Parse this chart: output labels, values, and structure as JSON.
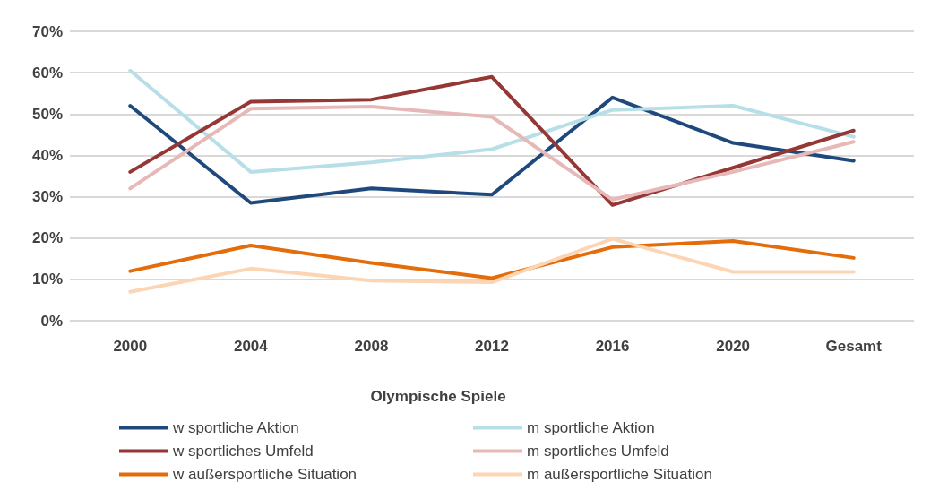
{
  "chart_data": {
    "type": "line",
    "xlabel": "Olympische Spiele",
    "categories": [
      "2000",
      "2004",
      "2008",
      "2012",
      "2016",
      "2020",
      "Gesamt"
    ],
    "ylim": [
      0,
      70
    ],
    "yticks": [
      {
        "value": 0,
        "label": "0%"
      },
      {
        "value": 10,
        "label": "10%"
      },
      {
        "value": 20,
        "label": "20%"
      },
      {
        "value": 30,
        "label": "30%"
      },
      {
        "value": 40,
        "label": "40%"
      },
      {
        "value": 50,
        "label": "50%"
      },
      {
        "value": 60,
        "label": "60%"
      },
      {
        "value": 70,
        "label": "70%"
      }
    ],
    "grid": "y",
    "legend": "bottom",
    "marker": "none",
    "line_style": "solid",
    "series": [
      {
        "name": "w sportliche Aktion",
        "color": "#1f497d",
        "values": [
          52,
          28.5,
          32,
          30.5,
          54,
          43,
          38.7
        ]
      },
      {
        "name": "m sportliche Aktion",
        "color": "#b7dfe8",
        "values": [
          60.5,
          36,
          38.3,
          41.5,
          51,
          52,
          44.5
        ]
      },
      {
        "name": "w sportliches Umfeld",
        "color": "#953735",
        "values": [
          36,
          53,
          53.5,
          59,
          28,
          37,
          46
        ]
      },
      {
        "name": "m sportliches Umfeld",
        "color": "#e6b9b8",
        "values": [
          32,
          51.3,
          51.8,
          49.3,
          29.3,
          36,
          43.3
        ]
      },
      {
        "name": "w außersportliche Situation",
        "color": "#e46c0a",
        "values": [
          12,
          18.2,
          14,
          10.3,
          17.8,
          19.3,
          15.2
        ]
      },
      {
        "name": "m außersportliche Situation",
        "color": "#fcd5b5",
        "values": [
          7,
          12.6,
          9.7,
          9.3,
          19.8,
          11.8,
          11.8
        ]
      }
    ]
  }
}
